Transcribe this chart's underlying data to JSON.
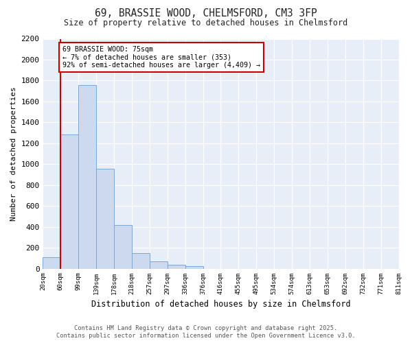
{
  "title_line1": "69, BRASSIE WOOD, CHELMSFORD, CM3 3FP",
  "title_line2": "Size of property relative to detached houses in Chelmsford",
  "xlabel": "Distribution of detached houses by size in Chelmsford",
  "ylabel": "Number of detached properties",
  "bins": [
    "20sqm",
    "60sqm",
    "99sqm",
    "139sqm",
    "178sqm",
    "218sqm",
    "257sqm",
    "297sqm",
    "336sqm",
    "376sqm",
    "416sqm",
    "455sqm",
    "495sqm",
    "534sqm",
    "574sqm",
    "613sqm",
    "653sqm",
    "692sqm",
    "732sqm",
    "771sqm",
    "811sqm"
  ],
  "bar_values": [
    108,
    1285,
    1760,
    955,
    415,
    150,
    68,
    38,
    22,
    0,
    0,
    0,
    0,
    0,
    0,
    0,
    0,
    0,
    0,
    0
  ],
  "bar_color": "#cdd9ee",
  "bar_edge_color": "#7ba7d4",
  "ylim": [
    0,
    2200
  ],
  "yticks": [
    0,
    200,
    400,
    600,
    800,
    1000,
    1200,
    1400,
    1600,
    1800,
    2000,
    2200
  ],
  "vline_color": "#cc0000",
  "annotation_text": "69 BRASSIE WOOD: 75sqm\n← 7% of detached houses are smaller (353)\n92% of semi-detached houses are larger (4,409) →",
  "annotation_box_color": "#cc0000",
  "footer_line1": "Contains HM Land Registry data © Crown copyright and database right 2025.",
  "footer_line2": "Contains public sector information licensed under the Open Government Licence v3.0.",
  "fig_bg_color": "#ffffff",
  "plot_bg_color": "#e8eef8",
  "grid_color": "#ffffff"
}
